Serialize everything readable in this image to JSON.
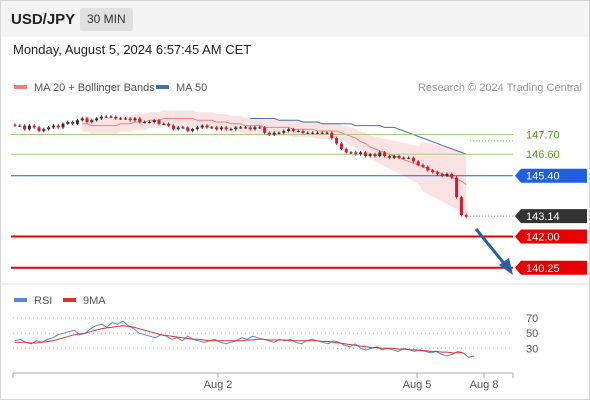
{
  "header": {
    "symbol": "USD/JPY",
    "timeframe": "30 MIN"
  },
  "datetime": "Monday, August 5, 2024 6:57:45 AM CET",
  "credit": "Research © 2024 Trading Central",
  "colors": {
    "bollinger": "#f08080",
    "ma50": "#4a6fb0",
    "support_red": "#e60000",
    "resistance_green": "#a8cc7a",
    "pivot_blue": "#1f5fe0",
    "arrow": "#2a5ea8",
    "rsi": "#5a84d8",
    "rsi_ma": "#e03030",
    "candle_up": "#333333",
    "candle_down": "#d11a2a"
  },
  "chart_data": [
    {
      "type": "candlestick",
      "legend": [
        {
          "label": "MA 20 + Bollinger Bands",
          "color": "#f08080"
        },
        {
          "label": "MA 50",
          "color": "#4a6fb0"
        }
      ],
      "ylim": [
        139.4,
        149.8
      ],
      "levels": [
        {
          "value": 147.7,
          "label": "147.70",
          "kind": "resistance"
        },
        {
          "value": 146.6,
          "label": "146.60",
          "kind": "resistance"
        },
        {
          "value": 145.4,
          "label": "145.40",
          "kind": "pivot"
        },
        {
          "value": 143.14,
          "label": "143.14",
          "kind": "last"
        },
        {
          "value": 142.0,
          "label": "142.00",
          "kind": "support"
        },
        {
          "value": 140.25,
          "label": "140.25",
          "kind": "support"
        }
      ],
      "close": [
        148.2,
        148.2,
        148.0,
        148.2,
        148.1,
        147.9,
        148.0,
        148.1,
        148.2,
        148.1,
        148.3,
        148.4,
        148.3,
        148.5,
        148.6,
        148.4,
        148.5,
        148.6,
        148.7,
        148.7,
        148.7,
        148.6,
        148.6,
        148.6,
        148.5,
        148.6,
        148.4,
        148.4,
        148.4,
        148.5,
        148.3,
        148.3,
        148.2,
        148.0,
        148.1,
        148.1,
        147.9,
        148.0,
        148.1,
        148.2,
        148.1,
        148.1,
        148.0,
        148.1,
        148.0,
        148.0,
        148.1,
        148.1,
        148.1,
        148.0,
        148.1,
        148.1,
        147.8,
        147.7,
        147.8,
        147.8,
        147.9,
        148.0,
        147.9,
        147.9,
        147.8,
        147.8,
        147.8,
        147.8,
        147.8,
        147.8,
        147.5,
        147.2,
        146.9,
        146.7,
        146.7,
        146.6,
        146.7,
        146.5,
        146.6,
        146.5,
        146.7,
        146.5,
        146.4,
        146.5,
        146.4,
        146.4,
        146.4,
        146.2,
        146.0,
        145.9,
        145.7,
        145.6,
        145.5,
        145.4,
        145.5,
        145.3,
        144.2,
        143.2,
        143.1
      ],
      "ma20": [
        148.3,
        148.3,
        148.2,
        148.2,
        148.2,
        148.2,
        148.2,
        148.2,
        148.3,
        148.3,
        148.3,
        148.4,
        148.4,
        148.4,
        148.5,
        148.5,
        148.5,
        148.6,
        148.6,
        148.6,
        148.6,
        148.6,
        148.6,
        148.6,
        148.5,
        148.5,
        148.5,
        148.5,
        148.4,
        148.4,
        148.4,
        148.3,
        148.3,
        148.3,
        148.2,
        148.2,
        148.2,
        148.2,
        148.1,
        148.1,
        148.1,
        148.1,
        148.1,
        148.1,
        148.0,
        148.0,
        148.0,
        148.0,
        148.0,
        147.9,
        147.9,
        147.9,
        147.9,
        147.9,
        147.8,
        147.7,
        147.6,
        147.5,
        147.3,
        147.2,
        147.0,
        146.9,
        146.8,
        146.7,
        146.6,
        146.5,
        146.4,
        146.3,
        146.2,
        146.1,
        146.0,
        145.9,
        145.8,
        145.7,
        145.6,
        145.5,
        145.4,
        145.3,
        145.2,
        145.1,
        144.9
      ],
      "ma50": [
        148.6,
        148.6,
        148.6,
        148.6,
        148.6,
        148.6,
        148.5,
        148.5,
        148.5,
        148.5,
        148.5,
        148.4,
        148.4,
        148.4,
        148.4,
        148.3,
        148.3,
        148.3,
        148.3,
        148.3,
        148.3,
        148.3,
        148.2,
        148.2,
        148.2,
        148.2,
        148.2,
        148.2,
        148.1,
        148.1,
        148.1,
        148.0,
        147.9,
        147.8,
        147.7,
        147.6,
        147.5,
        147.4,
        147.3,
        147.2,
        147.1,
        147.0,
        146.9,
        146.8,
        146.7,
        146.6
      ],
      "x_tick_labels": [
        "Aug 2",
        "Aug 5",
        "Aug 8"
      ]
    },
    {
      "type": "line",
      "legend": [
        {
          "label": "RSI",
          "color": "#5a84d8"
        },
        {
          "label": "9MA",
          "color": "#e03030"
        }
      ],
      "ylim": [
        0,
        90
      ],
      "y_ticks": [
        70,
        50,
        30
      ],
      "rsi": [
        40,
        42,
        38,
        36,
        40,
        38,
        42,
        44,
        48,
        50,
        52,
        54,
        48,
        50,
        56,
        60,
        62,
        58,
        64,
        62,
        66,
        60,
        56,
        50,
        48,
        46,
        44,
        48,
        46,
        42,
        44,
        40,
        46,
        42,
        40,
        38,
        40,
        42,
        38,
        36,
        38,
        40,
        44,
        42,
        46,
        44,
        42,
        40,
        38,
        42,
        40,
        42,
        38,
        36,
        40,
        42,
        40,
        38,
        36,
        40,
        38,
        34,
        32,
        36,
        30,
        28,
        30,
        32,
        28,
        30,
        28,
        26,
        30,
        28,
        26,
        28,
        26,
        24,
        26,
        22,
        20,
        22,
        26,
        24,
        18,
        20
      ],
      "ma9": [
        38,
        38,
        38,
        37,
        37,
        38,
        39,
        40,
        42,
        44,
        46,
        48,
        49,
        50,
        52,
        54,
        56,
        57,
        58,
        59,
        60,
        59,
        58,
        56,
        54,
        52,
        50,
        48,
        47,
        46,
        45,
        44,
        43,
        42,
        42,
        41,
        40,
        40,
        40,
        40,
        40,
        40,
        40,
        41,
        41,
        42,
        42,
        41,
        41,
        41,
        41,
        40,
        40,
        40,
        40,
        40,
        40,
        39,
        39,
        38,
        37,
        36,
        35,
        34,
        33,
        32,
        31,
        31,
        30,
        30,
        30,
        29,
        29,
        28,
        28,
        27,
        27,
        26,
        26,
        25,
        25,
        24,
        24,
        24
      ]
    }
  ]
}
